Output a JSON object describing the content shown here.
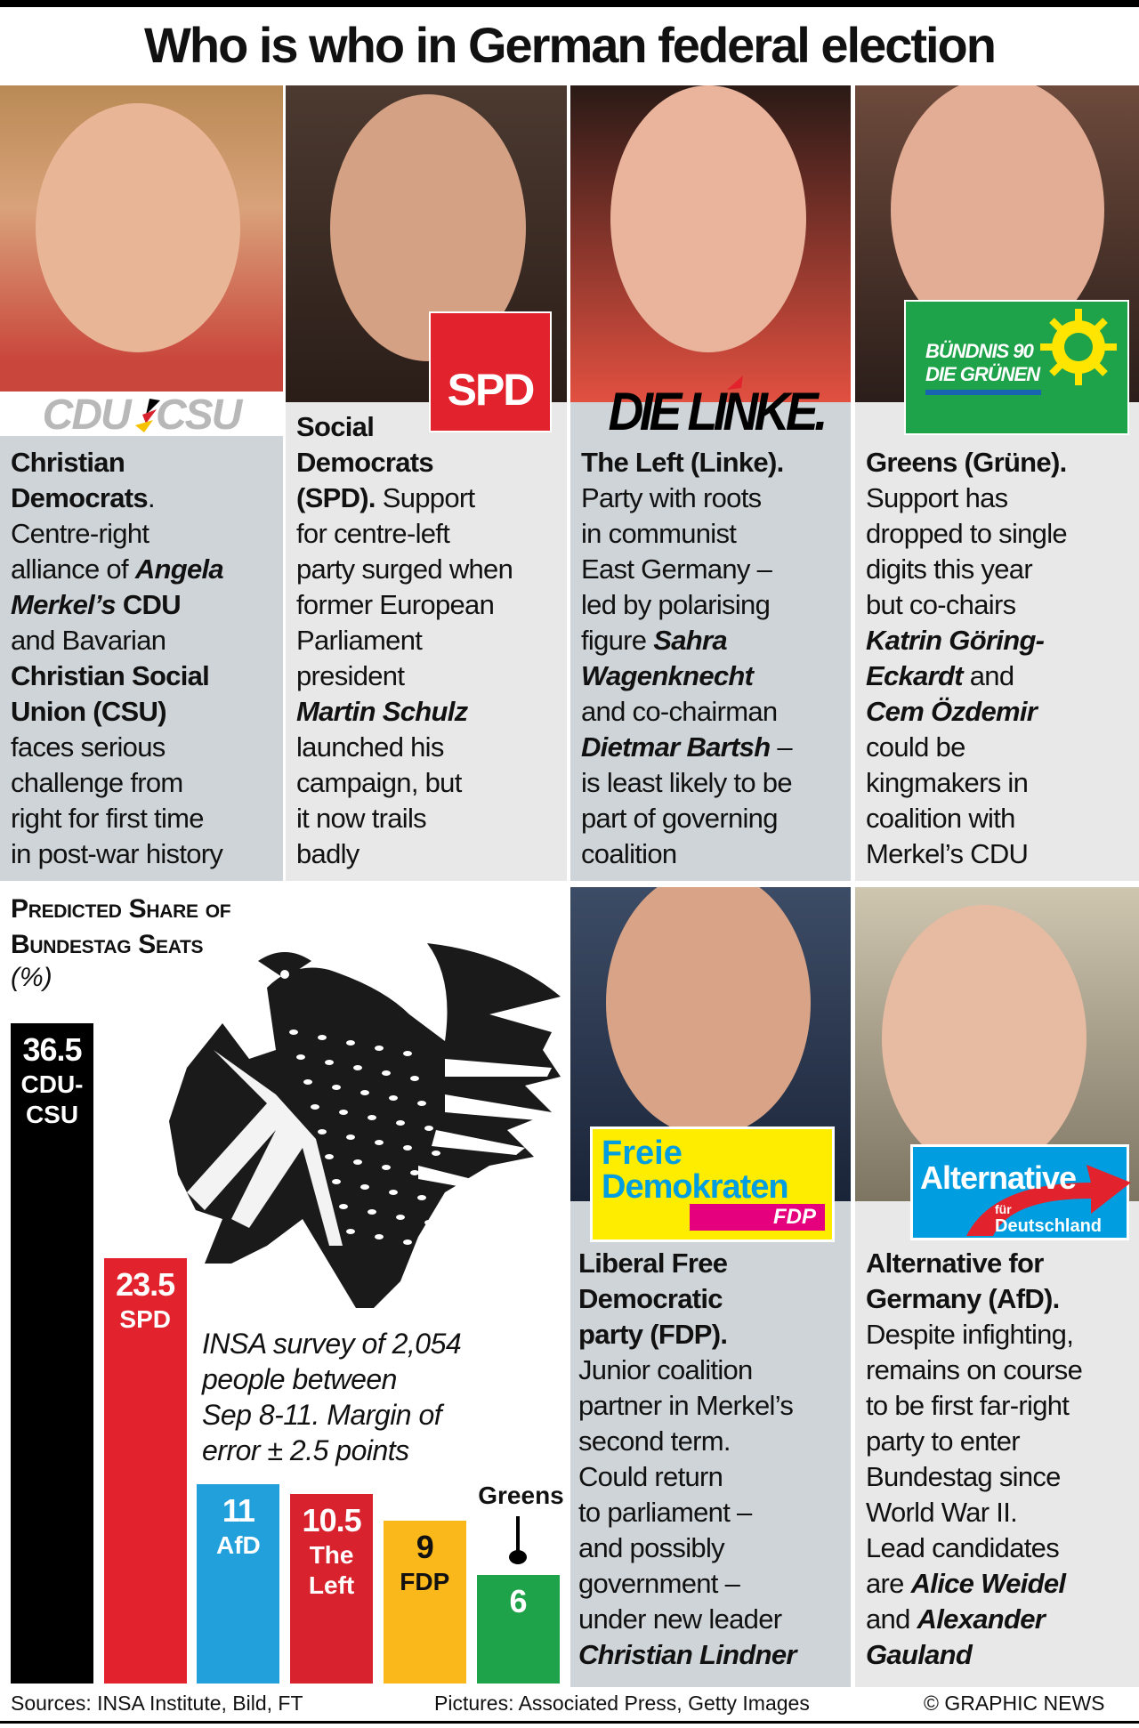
{
  "title": "Who is who in German federal election",
  "panels": [
    {
      "logo": "CDU CSU",
      "lines": [
        [
          {
            "s": "b",
            "t": "Christian"
          }
        ],
        [
          {
            "s": "b",
            "t": "Democrats"
          },
          {
            "s": "r",
            "t": "."
          }
        ],
        [
          {
            "s": "r",
            "t": "Centre-right"
          }
        ],
        [
          {
            "s": "r",
            "t": "alliance of "
          },
          {
            "s": "bi",
            "t": "Angela"
          }
        ],
        [
          {
            "s": "bi",
            "t": "Merkel’s"
          },
          {
            "s": "b",
            "t": " CDU"
          }
        ],
        [
          {
            "s": "r",
            "t": "and Bavarian"
          }
        ],
        [
          {
            "s": "b",
            "t": "Christian Social"
          }
        ],
        [
          {
            "s": "b",
            "t": "Union (CSU)"
          }
        ],
        [
          {
            "s": "r",
            "t": "faces serious"
          }
        ],
        [
          {
            "s": "r",
            "t": "challenge from"
          }
        ],
        [
          {
            "s": "r",
            "t": "right for first time"
          }
        ],
        [
          {
            "s": "r",
            "t": "in post-war history"
          }
        ]
      ]
    },
    {
      "logo": "SPD",
      "lines": [
        [
          {
            "s": "b",
            "t": "Social"
          }
        ],
        [
          {
            "s": "b",
            "t": "Democrats"
          }
        ],
        [
          {
            "s": "b",
            "t": "(SPD)."
          },
          {
            "s": "r",
            "t": " Support"
          }
        ],
        [
          {
            "s": "r",
            "t": "for centre-left"
          }
        ],
        [
          {
            "s": "r",
            "t": "party surged when"
          }
        ],
        [
          {
            "s": "r",
            "t": "former European"
          }
        ],
        [
          {
            "s": "r",
            "t": "Parliament"
          }
        ],
        [
          {
            "s": "r",
            "t": "president"
          }
        ],
        [
          {
            "s": "bi",
            "t": "Martin Schulz"
          }
        ],
        [
          {
            "s": "r",
            "t": "launched his"
          }
        ],
        [
          {
            "s": "r",
            "t": "campaign, but"
          }
        ],
        [
          {
            "s": "r",
            "t": "it now trails"
          }
        ],
        [
          {
            "s": "r",
            "t": "badly"
          }
        ]
      ]
    },
    {
      "logo": "DIE LINKE.",
      "lines": [
        [
          {
            "s": "b",
            "t": "The Left (Linke)."
          }
        ],
        [
          {
            "s": "r",
            "t": "Party with roots"
          }
        ],
        [
          {
            "s": "r",
            "t": "in communist"
          }
        ],
        [
          {
            "s": "r",
            "t": "East Germany –"
          }
        ],
        [
          {
            "s": "r",
            "t": "led by polarising"
          }
        ],
        [
          {
            "s": "r",
            "t": "figure "
          },
          {
            "s": "bi",
            "t": "Sahra"
          }
        ],
        [
          {
            "s": "bi",
            "t": "Wagenknecht"
          }
        ],
        [
          {
            "s": "r",
            "t": "and co-chairman"
          }
        ],
        [
          {
            "s": "bi",
            "t": "Dietmar Bartsh"
          },
          {
            "s": "r",
            "t": " –"
          }
        ],
        [
          {
            "s": "r",
            "t": "is least likely to be"
          }
        ],
        [
          {
            "s": "r",
            "t": "part of governing"
          }
        ],
        [
          {
            "s": "r",
            "t": "coalition"
          }
        ]
      ]
    },
    {
      "logo": [
        "BÜNDNIS 90",
        "DIE GRÜNEN"
      ],
      "lines": [
        [
          {
            "s": "b",
            "t": "Greens (Grüne)."
          }
        ],
        [
          {
            "s": "r",
            "t": "Support has"
          }
        ],
        [
          {
            "s": "r",
            "t": "dropped to single"
          }
        ],
        [
          {
            "s": "r",
            "t": "digits this year"
          }
        ],
        [
          {
            "s": "r",
            "t": "but co-chairs"
          }
        ],
        [
          {
            "s": "bi",
            "t": "Katrin Göring-"
          }
        ],
        [
          {
            "s": "bi",
            "t": "Eckardt"
          },
          {
            "s": "r",
            "t": " and"
          }
        ],
        [
          {
            "s": "bi",
            "t": "Cem Özdemir"
          }
        ],
        [
          {
            "s": "r",
            "t": "could be"
          }
        ],
        [
          {
            "s": "r",
            "t": "kingmakers in"
          }
        ],
        [
          {
            "s": "r",
            "t": "coalition with"
          }
        ],
        [
          {
            "s": "r",
            "t": "Merkel’s CDU"
          }
        ]
      ]
    },
    {
      "logo": [
        "Freie",
        "Demokraten",
        "FDP"
      ],
      "lines": [
        [
          {
            "s": "b",
            "t": "Liberal Free"
          }
        ],
        [
          {
            "s": "b",
            "t": "Democratic"
          }
        ],
        [
          {
            "s": "b",
            "t": "party (FDP)."
          }
        ],
        [
          {
            "s": "r",
            "t": "Junior coalition"
          }
        ],
        [
          {
            "s": "r",
            "t": "partner in Merkel’s"
          }
        ],
        [
          {
            "s": "r",
            "t": "second term."
          }
        ],
        [
          {
            "s": "r",
            "t": "Could return"
          }
        ],
        [
          {
            "s": "r",
            "t": "to parliament –"
          }
        ],
        [
          {
            "s": "r",
            "t": "and possibly"
          }
        ],
        [
          {
            "s": "r",
            "t": "government –"
          }
        ],
        [
          {
            "s": "r",
            "t": "under new leader"
          }
        ],
        [
          {
            "s": "bi",
            "t": "Christian Lindner"
          }
        ]
      ]
    },
    {
      "logo": [
        "Alternative",
        "für",
        "Deutschland"
      ],
      "lines": [
        [
          {
            "s": "b",
            "t": "Alternative for"
          }
        ],
        [
          {
            "s": "b",
            "t": "Germany (AfD)."
          }
        ],
        [
          {
            "s": "r",
            "t": "Despite infighting,"
          }
        ],
        [
          {
            "s": "r",
            "t": "remains on course"
          }
        ],
        [
          {
            "s": "r",
            "t": "to be first far-right"
          }
        ],
        [
          {
            "s": "r",
            "t": "party to enter"
          }
        ],
        [
          {
            "s": "r",
            "t": "Bundestag since"
          }
        ],
        [
          {
            "s": "r",
            "t": "World War II."
          }
        ],
        [
          {
            "s": "r",
            "t": "Lead candidates"
          }
        ],
        [
          {
            "s": "r",
            "t": "are "
          },
          {
            "s": "bi",
            "t": "Alice Weidel"
          }
        ],
        [
          {
            "s": "r",
            "t": "and "
          },
          {
            "s": "bi",
            "t": "Alexander"
          }
        ],
        [
          {
            "s": "bi",
            "t": "Gauland"
          }
        ]
      ]
    }
  ],
  "chart_data": {
    "type": "bar",
    "title": [
      "Predicted Share of",
      "Bundestag Seats"
    ],
    "unit": "(%)",
    "ylim": [
      0,
      36.5
    ],
    "bars": [
      {
        "value": 36.5,
        "value_label": "36.5",
        "label": [
          "CDU-",
          "CSU"
        ],
        "color": "#000000",
        "text_color": "#ffffff"
      },
      {
        "value": 23.5,
        "value_label": "23.5",
        "label": [
          "SPD"
        ],
        "color": "#e2222c",
        "text_color": "#ffffff"
      },
      {
        "value": 11,
        "value_label": "11",
        "label": [
          "AfD"
        ],
        "color": "#22a0dc",
        "text_color": "#ffffff"
      },
      {
        "value": 10.5,
        "value_label": "10.5",
        "label": [
          "The",
          "Left"
        ],
        "color": "#d8232f",
        "text_color": "#ffffff"
      },
      {
        "value": 9,
        "value_label": "9",
        "label": [
          "FDP"
        ],
        "color": "#fbb81a",
        "text_color": "#111111"
      },
      {
        "value": 6,
        "value_label": "6",
        "label": [],
        "color": "#1ea24a",
        "text_color": "#ffffff",
        "callout": "Greens"
      }
    ]
  },
  "note": [
    "INSA survey of 2,054",
    "people between",
    "Sep 8-11. Margin of",
    "error ± 2.5 points"
  ],
  "footer": {
    "sources": "Sources: INSA Institute, Bild, FT",
    "pictures": "Pictures: Associated Press, Getty Images",
    "credit": "© GRAPHIC NEWS"
  }
}
